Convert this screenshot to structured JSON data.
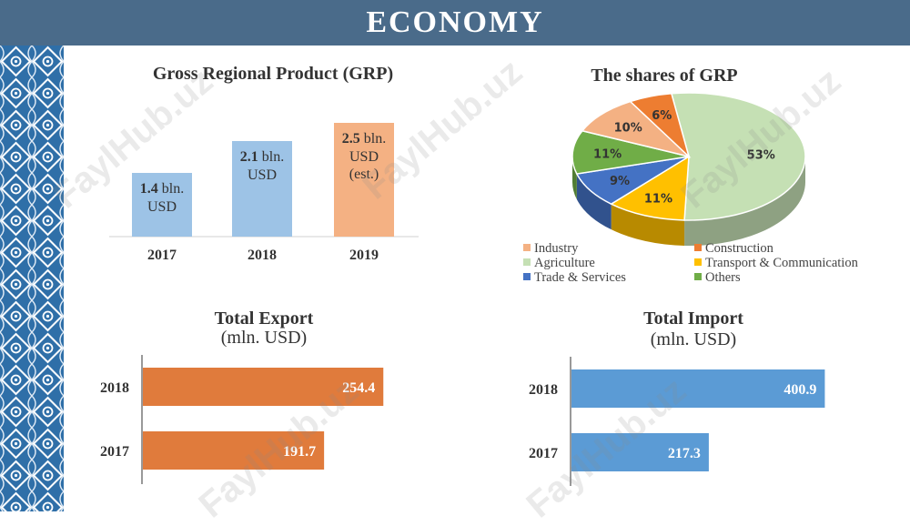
{
  "header": {
    "title": "ECONOMY"
  },
  "watermark": {
    "text": "FaylHub.uz"
  },
  "colors": {
    "header": "#4a6b8a",
    "grp_bar": "#9dc3e6",
    "grp_bar_est": "#f4b183",
    "export_bar": "#e07b3c",
    "import_bar": "#5b9bd5"
  },
  "chart_data": [
    {
      "id": "grp",
      "type": "bar",
      "title": "Gross Regional Product (GRP)",
      "categories": [
        "2017",
        "2018",
        "2019"
      ],
      "values": [
        1.4,
        2.1,
        2.5
      ],
      "labels": [
        {
          "number": "1.4",
          "unit": "bln.",
          "lines": [
            "USD"
          ]
        },
        {
          "number": "2.1",
          "unit": "bln.",
          "lines": [
            "USD"
          ]
        },
        {
          "number": "2.5",
          "unit": "bln.",
          "lines": [
            "USD",
            "(est.)"
          ]
        }
      ],
      "ylim": [
        0,
        3.2
      ],
      "grid": false
    },
    {
      "id": "shares",
      "type": "pie",
      "title": "The shares of GRP",
      "legend_position": "bottom",
      "slices": [
        {
          "name": "Agriculture",
          "value": 53,
          "label": "53%",
          "color": "#c5e0b4"
        },
        {
          "name": "Transport & Communication",
          "value": 11,
          "label": "11%",
          "color": "#ffc000"
        },
        {
          "name": "Trade & Services",
          "value": 9,
          "label": "9%",
          "color": "#4472c4"
        },
        {
          "name": "Others",
          "value": 11,
          "label": "11%",
          "color": "#70ad47"
        },
        {
          "name": "Industry",
          "value": 10,
          "label": "10%",
          "color": "#f4b183"
        },
        {
          "name": "Construction",
          "value": 6,
          "label": "6%",
          "color": "#ed7d31"
        }
      ],
      "legend": [
        {
          "name": "Industry",
          "color": "#f4b183"
        },
        {
          "name": "Construction",
          "color": "#ed7d31"
        },
        {
          "name": "Agriculture",
          "color": "#c5e0b4"
        },
        {
          "name": "Transport & Communication",
          "color": "#ffc000"
        },
        {
          "name": "Trade & Services",
          "color": "#4472c4"
        },
        {
          "name": "Others",
          "color": "#70ad47"
        }
      ]
    },
    {
      "id": "export",
      "type": "bar",
      "orientation": "horizontal",
      "title": "Total Export",
      "subtitle": "(mln. USD)",
      "categories": [
        "2018",
        "2017"
      ],
      "values": [
        254.4,
        191.7
      ],
      "labels": [
        "254.4",
        "191.7"
      ],
      "xlim": [
        0,
        284
      ]
    },
    {
      "id": "import",
      "type": "bar",
      "orientation": "horizontal",
      "title": "Total Import",
      "subtitle": "(mln. USD)",
      "categories": [
        "2018",
        "2017"
      ],
      "values": [
        400.9,
        217.3
      ],
      "labels": [
        "400.9",
        "217.3"
      ],
      "xlim": [
        0,
        432
      ]
    }
  ]
}
